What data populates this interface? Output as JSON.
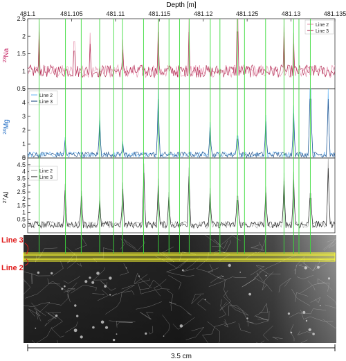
{
  "chart_data": {
    "type": "line",
    "x_axis": {
      "label": "Depth [m]",
      "range": [
        481.1,
        481.135
      ],
      "ticks": [
        "481.1",
        "481.105",
        "481.11",
        "481.115",
        "481.12",
        "481.125",
        "481.13",
        "481.135"
      ]
    },
    "panels": [
      {
        "element": "23Na",
        "ylabel_sup": "23",
        "ylabel_main": "Na",
        "color": "#c2185b",
        "ylim": [
          0.5,
          2.5
        ],
        "yticks": [
          "0.5",
          "1",
          "1.5",
          "2",
          "2.5"
        ],
        "legend": [
          "Line 2",
          "Line 3"
        ],
        "legend_colors": [
          "#e38aa6",
          "#a81440"
        ],
        "baseline": 1.0,
        "noise": 0.18,
        "peaks": [
          {
            "x": 481.1013,
            "y": 2.5
          },
          {
            "x": 481.1053,
            "y": 1.85
          },
          {
            "x": 481.1071,
            "y": 2.1
          },
          {
            "x": 481.1108,
            "y": 1.9
          },
          {
            "x": 481.1149,
            "y": 2.5
          },
          {
            "x": 481.1184,
            "y": 2.5
          },
          {
            "x": 481.1239,
            "y": 2.5
          },
          {
            "x": 481.1292,
            "y": 2.5
          },
          {
            "x": 481.1303,
            "y": 2.1
          }
        ]
      },
      {
        "element": "24Mg",
        "ylabel_sup": "24",
        "ylabel_main": "Mg",
        "color": "#1565c0",
        "ylim": [
          0,
          5
        ],
        "yticks": [
          "0",
          "1",
          "2",
          "3",
          "4",
          "5"
        ],
        "legend": [
          "Line 2",
          "Line 3"
        ],
        "legend_colors": [
          "#64b5f6",
          "#0d3c78"
        ],
        "baseline": 0.25,
        "noise": 0.2,
        "peaks": [
          {
            "x": 481.1043,
            "y": 1.5
          },
          {
            "x": 481.1082,
            "y": 3.2
          },
          {
            "x": 481.1108,
            "y": 1.2
          },
          {
            "x": 481.1149,
            "y": 5.0
          },
          {
            "x": 481.1208,
            "y": 2.6
          },
          {
            "x": 481.1239,
            "y": 1.6
          },
          {
            "x": 481.1271,
            "y": 3.1
          },
          {
            "x": 481.1303,
            "y": 3.8
          },
          {
            "x": 481.1322,
            "y": 5.0
          },
          {
            "x": 481.1342,
            "y": 5.0
          }
        ]
      },
      {
        "element": "27Al",
        "ylabel_sup": "27",
        "ylabel_main": "Al",
        "color": "#222222",
        "ylim": [
          -0.5,
          5
        ],
        "yticks": [
          "0",
          "0.5",
          "1",
          "1.5",
          "2",
          "2.5",
          "3",
          "3.5",
          "4",
          "4.5",
          "5"
        ],
        "legend": [
          "Line 2",
          "Line 3"
        ],
        "legend_colors": [
          "#9e9e9e",
          "#111111"
        ],
        "baseline": 0.1,
        "noise": 0.25,
        "peaks": [
          {
            "x": 481.1043,
            "y": 3.1
          },
          {
            "x": 481.1061,
            "y": 2.6
          },
          {
            "x": 481.1082,
            "y": 2.2
          },
          {
            "x": 481.1108,
            "y": 3.2
          },
          {
            "x": 481.1132,
            "y": 4.6
          },
          {
            "x": 481.1149,
            "y": 3.5
          },
          {
            "x": 481.1161,
            "y": 2.5
          },
          {
            "x": 481.1184,
            "y": 4.3
          },
          {
            "x": 481.1208,
            "y": 2.8
          },
          {
            "x": 481.1239,
            "y": 2.2
          },
          {
            "x": 481.1271,
            "y": 2.9
          },
          {
            "x": 481.1292,
            "y": 3.9
          },
          {
            "x": 481.1303,
            "y": 4.0
          },
          {
            "x": 481.1322,
            "y": 2.4
          },
          {
            "x": 481.1342,
            "y": 5.0
          }
        ]
      }
    ],
    "markers_x": [
      481.1013,
      481.1043,
      481.1061,
      481.1082,
      481.1098,
      481.1108,
      481.1132,
      481.1149,
      481.1161,
      481.1173,
      481.1184,
      481.1208,
      481.1219,
      481.1239,
      481.1247,
      481.1271,
      481.1292,
      481.1303,
      481.1309,
      481.1322
    ],
    "marker_color": "#3ddc3d",
    "grid": false
  },
  "photo": {
    "line3_label": "Line 3",
    "line2_label": "Line 2",
    "band_color": "#ffff33",
    "label_color": "#e01b1b"
  },
  "scalebar": {
    "label": "3.5 cm"
  }
}
